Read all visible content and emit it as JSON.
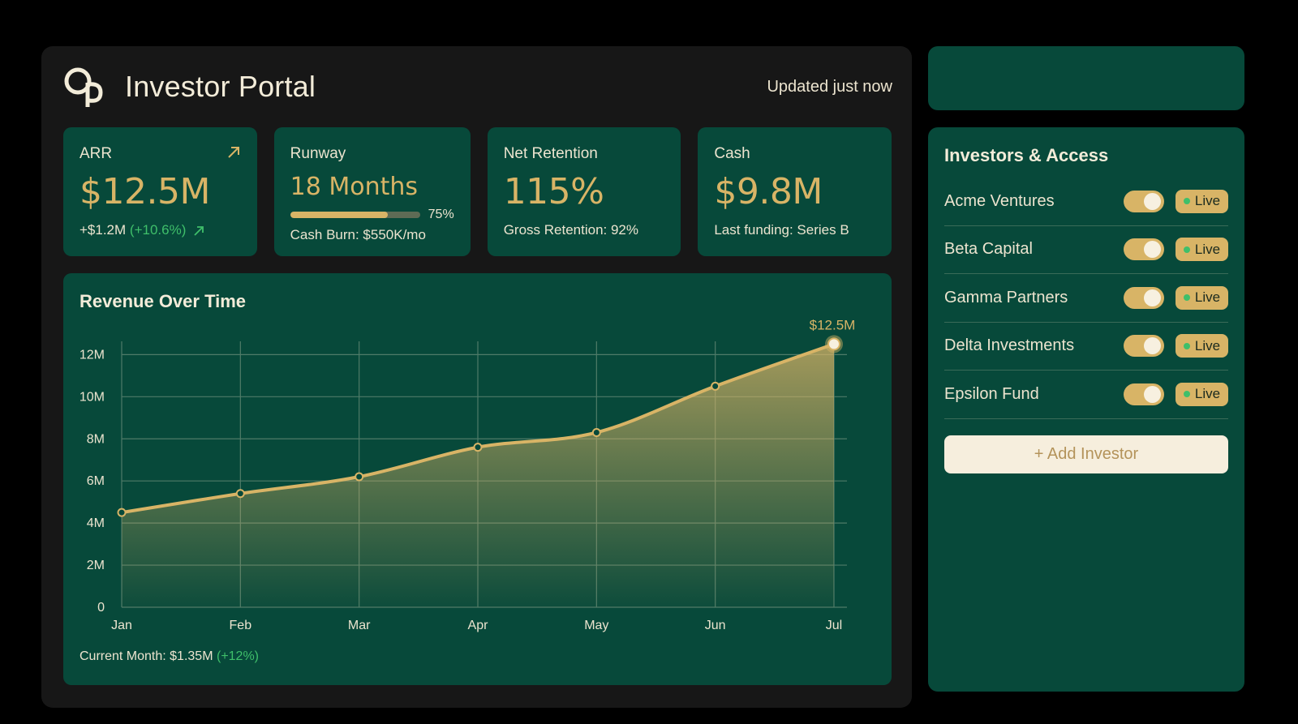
{
  "header": {
    "title": "Investor Portal",
    "updated": "Updated just now"
  },
  "kpis": {
    "arr": {
      "label": "ARR",
      "value": "$12.5M",
      "change": "+$1.2M",
      "change_pct": "(+10.6%)"
    },
    "runway": {
      "label": "Runway",
      "value": "18 Months",
      "progress": 75,
      "progress_label": "75%",
      "sub": "Cash Burn: $550K/mo"
    },
    "net_retention": {
      "label": "Net Retention",
      "value": "115%",
      "sub": "Gross Retention: 92%"
    },
    "cash": {
      "label": "Cash",
      "value": "$9.8M",
      "sub": "Last funding: Series B"
    }
  },
  "chart": {
    "title": "Revenue Over Time",
    "footer_label": "Current Month: $1.35M",
    "footer_change": "(+12%)"
  },
  "chart_data": {
    "type": "area",
    "title": "Revenue Over Time",
    "categories": [
      "Jan",
      "Feb",
      "Mar",
      "Apr",
      "May",
      "Jun",
      "Jul"
    ],
    "series": [
      {
        "values": [
          4.5,
          5.4,
          6.2,
          7.6,
          8.3,
          10.5,
          12.5
        ]
      }
    ],
    "y_ticks": [
      0,
      2,
      4,
      6,
      8,
      10,
      12
    ],
    "y_tick_labels": [
      "0",
      "2M",
      "4M",
      "6M",
      "8M",
      "10M",
      "12M"
    ],
    "ylim": [
      0,
      12.4
    ],
    "grid": true,
    "end_label": "$12.5M",
    "colors": {
      "line": "#d8b466",
      "grid": "#4f7b68"
    }
  },
  "investors": {
    "title": "Investors & Access",
    "items": [
      {
        "name": "Acme Ventures",
        "status": "Live",
        "enabled": true
      },
      {
        "name": "Beta Capital",
        "status": "Live",
        "enabled": true
      },
      {
        "name": "Gamma Partners",
        "status": "Live",
        "enabled": true
      },
      {
        "name": "Delta Investments",
        "status": "Live",
        "enabled": true
      },
      {
        "name": "Epsilon Fund",
        "status": "Live",
        "enabled": true
      }
    ],
    "add_label": "+ Add Investor"
  },
  "colors": {
    "gold": "#d8b466",
    "green_card": "#07493a",
    "panel": "#171717",
    "positive": "#3fbf6a"
  }
}
